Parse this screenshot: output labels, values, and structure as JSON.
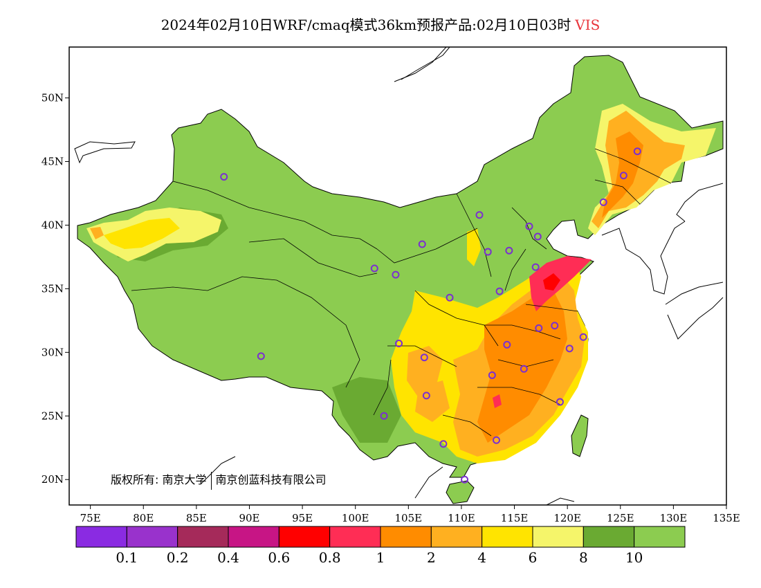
{
  "title": {
    "main": "2024年02月10日WRF/cmaq模式36km预报产品:02月10日03时",
    "variable": "VIS"
  },
  "axes": {
    "x_ticks": [
      "75E",
      "80E",
      "85E",
      "90E",
      "95E",
      "100E",
      "105E",
      "110E",
      "115E",
      "120E",
      "125E",
      "130E",
      "135E"
    ],
    "x_values": [
      75,
      80,
      85,
      90,
      95,
      100,
      105,
      110,
      115,
      120,
      125,
      130,
      135
    ],
    "y_ticks": [
      "20N",
      "25N",
      "30N",
      "35N",
      "40N",
      "45N",
      "50N"
    ],
    "y_values": [
      20,
      25,
      30,
      35,
      40,
      45,
      50
    ],
    "lon_range": [
      73,
      135
    ],
    "lat_range": [
      18,
      54
    ]
  },
  "colorbar": {
    "colors": [
      "#8a2be2",
      "#9932cc",
      "#a52a5a",
      "#c71585",
      "#ff0000",
      "#ff2d55",
      "#ff8c00",
      "#ffb020",
      "#ffe400",
      "#f5f56a",
      "#6aaa32",
      "#8ccc50"
    ],
    "labels": [
      "0.1",
      "0.2",
      "0.4",
      "0.6",
      "0.8",
      "1",
      "2",
      "4",
      "6",
      "8",
      "10"
    ]
  },
  "stations": [
    [
      87.6,
      43.8
    ],
    [
      101.8,
      36.6
    ],
    [
      103.8,
      36.1
    ],
    [
      106.3,
      38.5
    ],
    [
      111.7,
      40.8
    ],
    [
      112.5,
      37.9
    ],
    [
      114.5,
      38.0
    ],
    [
      116.4,
      39.9
    ],
    [
      117.2,
      39.1
    ],
    [
      117.0,
      36.7
    ],
    [
      113.6,
      34.8
    ],
    [
      108.9,
      34.3
    ],
    [
      126.6,
      45.8
    ],
    [
      125.3,
      43.9
    ],
    [
      123.4,
      41.8
    ],
    [
      104.1,
      30.7
    ],
    [
      106.5,
      29.6
    ],
    [
      106.7,
      26.6
    ],
    [
      102.7,
      25.0
    ],
    [
      91.1,
      29.7
    ],
    [
      108.3,
      22.8
    ],
    [
      110.3,
      20.0
    ],
    [
      113.3,
      23.1
    ],
    [
      119.3,
      26.1
    ],
    [
      112.9,
      28.2
    ],
    [
      115.9,
      28.7
    ],
    [
      114.3,
      30.6
    ],
    [
      117.3,
      31.9
    ],
    [
      118.8,
      32.1
    ],
    [
      120.2,
      30.3
    ],
    [
      121.5,
      31.2
    ]
  ],
  "copyright": {
    "owner_label": "版权所有:",
    "org1": "南京大学",
    "org2": "南京创蓝科技有限公司"
  }
}
